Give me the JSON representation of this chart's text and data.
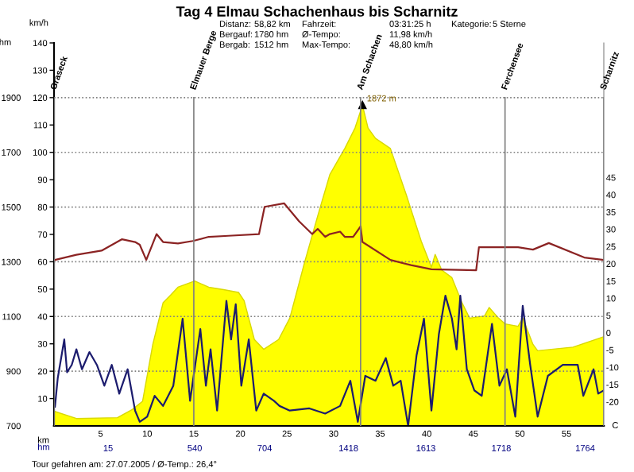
{
  "chart_data": {
    "type": "area",
    "title": "Tag 4 Elmau Schachenhaus bis Scharnitz",
    "xlabel": "km",
    "ylabel": "hm",
    "y2label": "km/h",
    "y3label": "C",
    "xlim": [
      0,
      59
    ],
    "xticks": [
      5,
      10,
      15,
      20,
      25,
      30,
      35,
      40,
      45,
      50,
      55
    ],
    "ylim": [
      700,
      2100
    ],
    "yticks": [
      700,
      900,
      1100,
      1300,
      1500,
      1700,
      1900
    ],
    "y2lim": [
      0,
      140
    ],
    "y2ticks": [
      10,
      20,
      30,
      40,
      50,
      60,
      70,
      80,
      90,
      100,
      110,
      120,
      130,
      140
    ],
    "y3lim": [
      -27,
      84
    ],
    "y3ticks": [
      -20,
      -15,
      -10,
      -5,
      0,
      5,
      10,
      15,
      20,
      25,
      30,
      35,
      40,
      45
    ],
    "grid": "y",
    "series": [
      {
        "color": "#ffff00",
        "x": [
          0,
          2.4,
          6.8,
          8.4,
          9.5,
          10.6,
          11.7,
          12.5,
          13.3,
          15.1,
          16.6,
          18.2,
          19.8,
          20.4,
          21.5,
          22.5,
          24.1,
          25.3,
          26.9,
          28.3,
          29.6,
          31.2,
          32.3,
          33.1,
          33.7,
          34.5,
          36.1,
          37.8,
          39.4,
          40.5,
          40.9,
          41.6,
          42.7,
          43.8,
          44.6,
          46.2,
          46.7,
          47.7,
          48.4,
          49.8,
          50.3,
          51.4,
          51.9,
          55.7,
          59
        ],
        "values": [
          754,
          727,
          730,
          760,
          790,
          998,
          1150,
          1178,
          1207,
          1230,
          1207,
          1198,
          1188,
          1158,
          1016,
          980,
          1016,
          1094,
          1299,
          1468,
          1619,
          1714,
          1789,
          1872,
          1789,
          1751,
          1714,
          1545,
          1376,
          1280,
          1327,
          1270,
          1242,
          1149,
          1094,
          1102,
          1133,
          1094,
          1073,
          1064,
          1094,
          998,
          975,
          988,
          1026
        ]
      },
      {
        "type": "line",
        "axis": "y3",
        "color": "#8b2323",
        "x": [
          0.1,
          2.4,
          5.1,
          7.3,
          8.7,
          9.2,
          9.9,
          11.0,
          11.7,
          13.3,
          14.9,
          16.6,
          18.7,
          22.0,
          22.6,
          24.7,
          26.3,
          27.7,
          28.3,
          29.1,
          29.6,
          30.7,
          31.2,
          32.1,
          32.9,
          33.1,
          36.1,
          38.3,
          40.5,
          45.3,
          45.6,
          49.8,
          51.4,
          53.1,
          56.9,
          59
        ],
        "values": [
          21.1,
          22.6,
          23.8,
          27.1,
          26.3,
          25.5,
          21.1,
          28.6,
          26.3,
          25.9,
          26.6,
          27.8,
          28.1,
          28.6,
          36.5,
          37.5,
          32.3,
          28.6,
          30.1,
          27.8,
          28.6,
          29.3,
          27.8,
          27.8,
          30.8,
          26.3,
          21.1,
          19.6,
          18.4,
          18.1,
          24.8,
          24.8,
          24.1,
          26.0,
          21.8,
          21.1
        ]
      },
      {
        "type": "line",
        "axis": "y2",
        "color": "#1c1c6e",
        "x": [
          0.1,
          0.4,
          1.1,
          1.4,
          1.9,
          2.4,
          3.0,
          3.8,
          4.6,
          5.4,
          6.2,
          7.0,
          7.9,
          8.7,
          9.2,
          10.0,
          10.8,
          11.7,
          12.8,
          13.8,
          14.6,
          15.7,
          16.3,
          16.8,
          17.5,
          18.5,
          19.0,
          19.5,
          20.1,
          20.9,
          21.7,
          22.5,
          23.6,
          24.2,
          25.3,
          27.4,
          29.1,
          30.7,
          31.8,
          32.6,
          33.4,
          34.5,
          35.6,
          36.4,
          37.2,
          38.0,
          38.9,
          39.7,
          40.5,
          41.3,
          42.0,
          42.7,
          43.2,
          43.6,
          44.3,
          45.1,
          45.9,
          47.0,
          47.8,
          48.6,
          49.5,
          50.3,
          51.1,
          51.9,
          53.0,
          54.6,
          56.2,
          56.8,
          57.9,
          58.4,
          59.0
        ],
        "values": [
          7,
          17.5,
          31.6,
          19.6,
          22.3,
          28,
          20.7,
          27,
          22.3,
          14.7,
          22.3,
          11.8,
          20.7,
          5.6,
          1.5,
          3.4,
          11,
          7.3,
          14.7,
          39.2,
          9.2,
          35.4,
          14.7,
          28,
          5.6,
          45.7,
          31.6,
          44.5,
          14.7,
          31.6,
          5.6,
          11.8,
          9.2,
          7.3,
          5.6,
          6.4,
          4.5,
          7.3,
          16.5,
          1.5,
          18.3,
          16.5,
          24.8,
          14.7,
          16.5,
          0,
          25.7,
          39.2,
          5.6,
          33.5,
          47.6,
          39.2,
          28,
          47.6,
          20.7,
          13,
          11,
          37.3,
          14.7,
          20.7,
          3.4,
          43.9,
          22.3,
          3.4,
          18.3,
          22.3,
          22.3,
          11,
          20.7,
          11.8,
          13
        ]
      }
    ],
    "ref_lines": [
      {
        "axis": "x",
        "value": 0,
        "label": "Graseck",
        "color": "#808080"
      },
      {
        "axis": "x",
        "value": 15.0,
        "label": "Elmauer Berge",
        "color": "#808080"
      },
      {
        "axis": "x",
        "value": 32.9,
        "label": "Am Schachen",
        "color": "#808080"
      },
      {
        "axis": "x",
        "value": 48.4,
        "label": "Ferchensee",
        "color": "#808080"
      },
      {
        "axis": "x",
        "value": 59,
        "label": "Scharnitz",
        "color": "#808080"
      }
    ],
    "annotations": [
      "Distanz:",
      "58,82 km",
      "Fahrzeit:",
      "03:31:25 h",
      "Kategorie:",
      "5 Sterne",
      "Bergauf:",
      "1780 hm",
      "Ø-Tempo:",
      "11,98 km/h",
      "Bergab:",
      "1512 hm",
      "Max-Tempo:",
      "48,80 km/h",
      {
        "text": "1872 m",
        "x": 33.1,
        "y": 1872
      },
      "hm",
      {
        "text": "15",
        "x": 5.8,
        "y": 700
      },
      {
        "text": "540",
        "x": 15.1,
        "y": 700
      },
      {
        "text": "704",
        "x": 22.6,
        "y": 700
      },
      {
        "text": "1418",
        "x": 31.6,
        "y": 700
      },
      {
        "text": "1613",
        "x": 39.9,
        "y": 700
      },
      {
        "text": "1718",
        "x": 48.0,
        "y": 700
      },
      {
        "text": "1764",
        "x": 57.0,
        "y": 700
      },
      "Tour gefahren am: 27.07.2005 / Ø-Temp.: 26,4°"
    ]
  }
}
